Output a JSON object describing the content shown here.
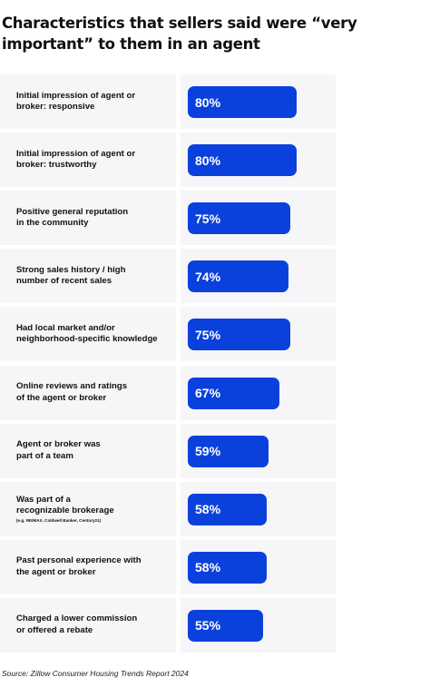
{
  "title": "Characteristics that sellers said were “very important” to them in an agent",
  "source": "Source: Zillow Consumer Housing Trends Report 2024",
  "colors": {
    "bar": "#0a41dc",
    "row_background": "#f6f6f8",
    "bar_label": "#ffffff"
  },
  "chart_data": {
    "type": "bar",
    "orientation": "horizontal",
    "title": "Characteristics that sellers said were “very important” to them in an agent",
    "xlim": [
      0,
      100
    ],
    "unit": "%",
    "categories": [
      "Initial impression of agent or\nbroker: responsive",
      "Initial impression of agent or\nbroker: trustworthy",
      "Positive general reputation\nin the community",
      "Strong sales history / high\nnumber of recent sales",
      "Had local market and/or\nneighborhood-specific knowledge",
      "Online reviews and ratings\nof the agent or broker",
      "Agent or broker was\npart of a team",
      "Was part of a\nrecognizable brokerage",
      "Past personal experience with\nthe agent or broker",
      "Charged a lower commission\nor offered a rebate"
    ],
    "notes": [
      "",
      "",
      "",
      "",
      "",
      "",
      "",
      "(e.g. RE/MAX, Coldwell Banker, Century21)",
      "",
      ""
    ],
    "values": [
      80,
      80,
      75,
      74,
      75,
      67,
      59,
      58,
      58,
      55
    ],
    "value_labels": [
      "80%",
      "80%",
      "75%",
      "74%",
      "75%",
      "67%",
      "59%",
      "58%",
      "58%",
      "55%"
    ]
  }
}
